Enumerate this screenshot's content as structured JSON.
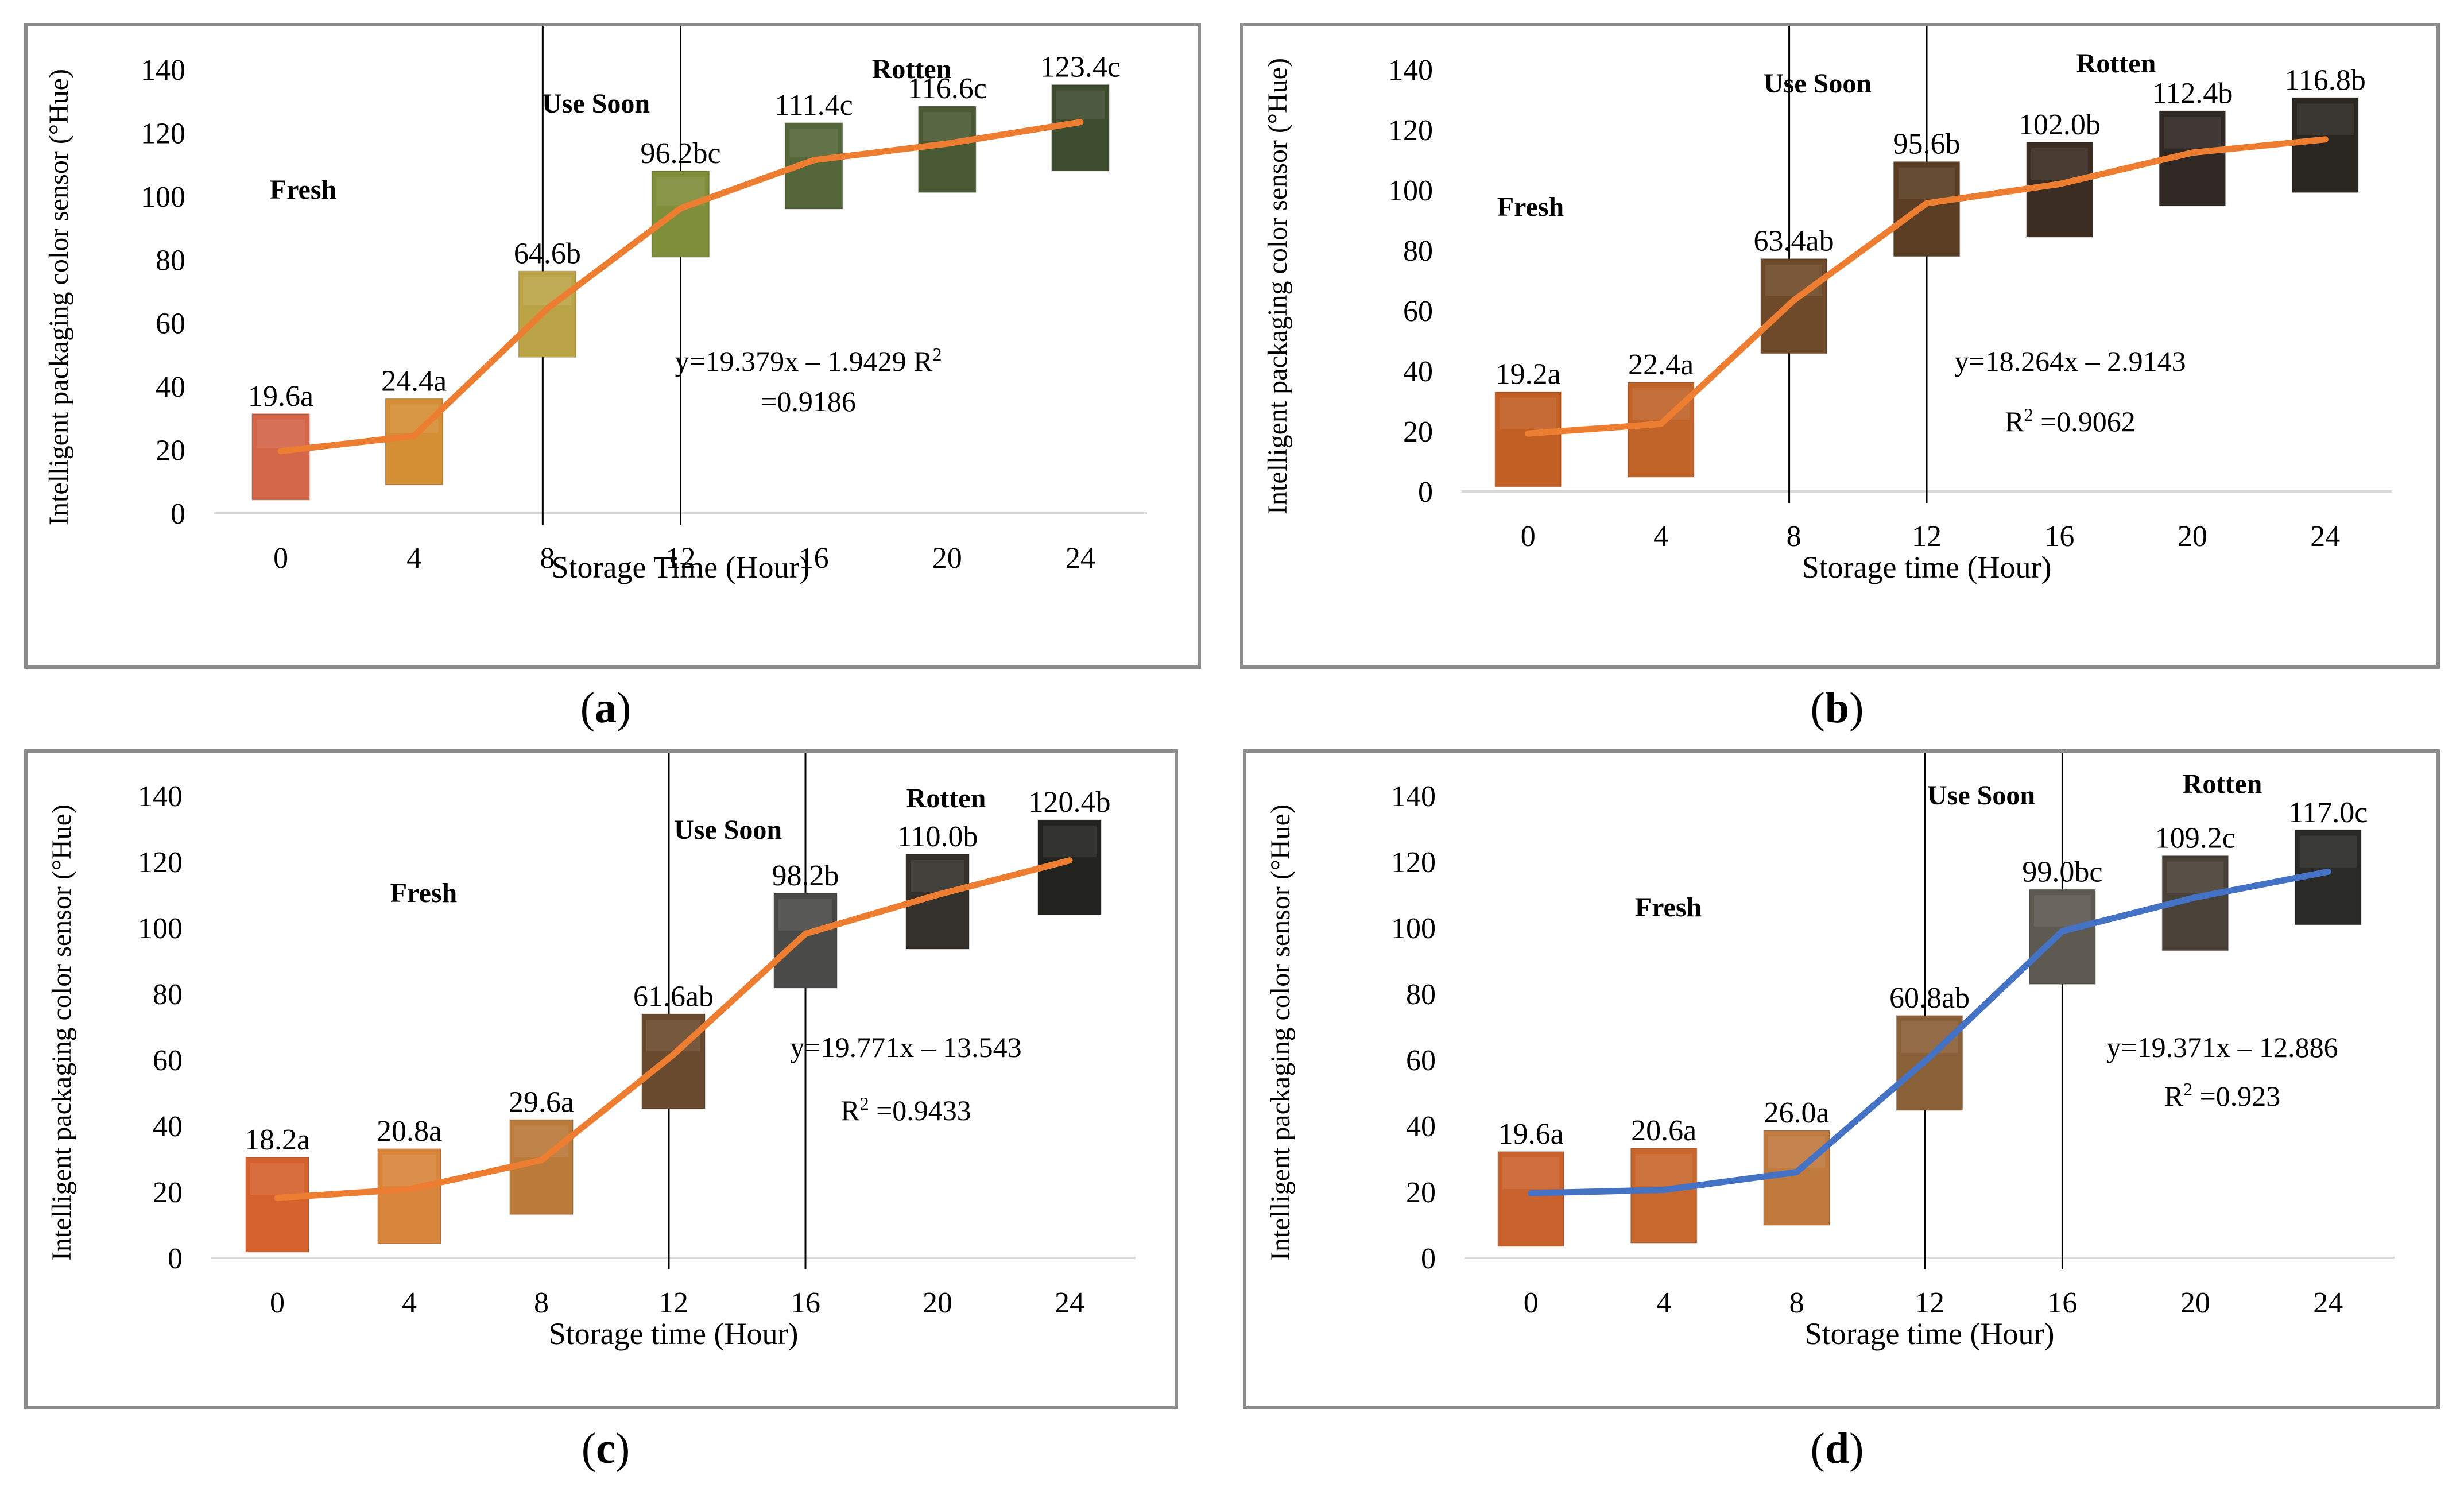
{
  "figure": {
    "panel_labels": [
      "a",
      "b",
      "c",
      "d"
    ]
  },
  "chart_data": [
    {
      "type": "line",
      "panel": "a",
      "title": "",
      "xlabel": "Storage Time (Hour)",
      "ylabel": "Intelligent  packaging color sensor (°Hue)",
      "categories": [
        "0",
        "4",
        "8",
        "12",
        "16",
        "20",
        "24"
      ],
      "series": [
        {
          "name": "°Hue",
          "values": [
            19.6,
            24.4,
            64.6,
            96.2,
            111.4,
            116.6,
            123.4
          ],
          "color": "#ed7d31"
        }
      ],
      "data_labels": [
        "19.6a",
        "24.4a",
        "64.6b",
        "96.2bc",
        "111.4c",
        "116.6c",
        "123.4c"
      ],
      "ylim": [
        0,
        140
      ],
      "yticks": [
        "0",
        "20",
        "40",
        "60",
        "80",
        "100",
        "120",
        "140"
      ],
      "zones": [
        "Fresh",
        "Use Soon",
        "Rotten"
      ],
      "zone_dividers_x": [
        8,
        12
      ],
      "equation_lines": [
        "y=19.379x – 1.9429 R",
        "2",
        "=0.9186"
      ],
      "swatch_colors": [
        "#d4674a",
        "#d48f35",
        "#bba448",
        "#7f8e3a",
        "#55673a",
        "#4a5a34",
        "#3e4c30"
      ]
    },
    {
      "type": "line",
      "panel": "b",
      "title": "",
      "xlabel": "Storage time (Hour)",
      "ylabel": "Intelligent  packaging color sensor (°Hue)",
      "categories": [
        "0",
        "4",
        "8",
        "12",
        "16",
        "20",
        "24"
      ],
      "series": [
        {
          "name": "°Hue",
          "values": [
            19.2,
            22.4,
            63.4,
            95.6,
            102.0,
            112.4,
            116.8
          ],
          "color": "#ed7d31"
        }
      ],
      "data_labels": [
        "19.2a",
        "22.4a",
        "63.4ab",
        "95.6b",
        "102.0b",
        "112.4b",
        "116.8b"
      ],
      "ylim": [
        0,
        140
      ],
      "yticks": [
        "0",
        "20",
        "40",
        "60",
        "80",
        "100",
        "120",
        "140"
      ],
      "zones": [
        "Fresh",
        "Use Soon",
        "Rotten"
      ],
      "zone_dividers_x": [
        8,
        12
      ],
      "equation_lines": [
        "y=18.264x – 2.9143",
        "R",
        "2",
        " =0.9062"
      ],
      "swatch_colors": [
        "#c25f24",
        "#c0642a",
        "#6f4a2a",
        "#5a3d22",
        "#3b2d22",
        "#2f2824",
        "#2a2622"
      ]
    },
    {
      "type": "line",
      "panel": "c",
      "title": "",
      "xlabel": "Storage time (Hour)",
      "ylabel": "Intelligent packaging color sensor (°Hue)",
      "categories": [
        "0",
        "4",
        "8",
        "12",
        "16",
        "20",
        "24"
      ],
      "series": [
        {
          "name": "°Hue",
          "values": [
            18.2,
            20.8,
            29.6,
            61.6,
            98.2,
            110.0,
            120.4
          ],
          "color": "#ed7d31"
        }
      ],
      "data_labels": [
        "18.2a",
        "20.8a",
        "29.6a",
        "61.6ab",
        "98.2b",
        "110.0b",
        "120.4b"
      ],
      "ylim": [
        0,
        140
      ],
      "yticks": [
        "0",
        "20",
        "40",
        "60",
        "80",
        "100",
        "120",
        "140"
      ],
      "zones": [
        "Fresh",
        "Use Soon",
        "Rotten"
      ],
      "zone_dividers_x": [
        12,
        16
      ],
      "equation_lines": [
        "y=19.771x – 13.543",
        "R",
        "2",
        " =0.9433"
      ],
      "swatch_colors": [
        "#d5622e",
        "#d9853c",
        "#b97a3a",
        "#6a4a2e",
        "#4a4a48",
        "#34312c",
        "#22221f"
      ]
    },
    {
      "type": "line",
      "panel": "d",
      "title": "",
      "xlabel": "Storage time (Hour)",
      "ylabel": "Intelligent packaging color sensor (°Hue)",
      "categories": [
        "0",
        "4",
        "8",
        "12",
        "16",
        "20",
        "24"
      ],
      "series": [
        {
          "name": "°Hue",
          "values": [
            19.6,
            20.6,
            26.0,
            60.8,
            99.0,
            109.2,
            117.0
          ],
          "color": "#4472c4"
        }
      ],
      "data_labels": [
        "19.6a",
        "20.6a",
        "26.0a",
        "60.8ab",
        "99.0bc",
        "109.2c",
        "117.0c"
      ],
      "ylim": [
        0,
        140
      ],
      "yticks": [
        "0",
        "20",
        "40",
        "60",
        "80",
        "100",
        "120",
        "140"
      ],
      "zones": [
        "Fresh",
        "Use Soon",
        "Rotten"
      ],
      "zone_dividers_x": [
        12,
        16
      ],
      "equation_lines": [
        "y=19.371x – 12.886",
        "R",
        "2",
        " =0.923"
      ],
      "swatch_colors": [
        "#c9622c",
        "#c9682e",
        "#c07a3e",
        "#8a6038",
        "#5e5a52",
        "#4a4238",
        "#2a2a27"
      ]
    }
  ]
}
